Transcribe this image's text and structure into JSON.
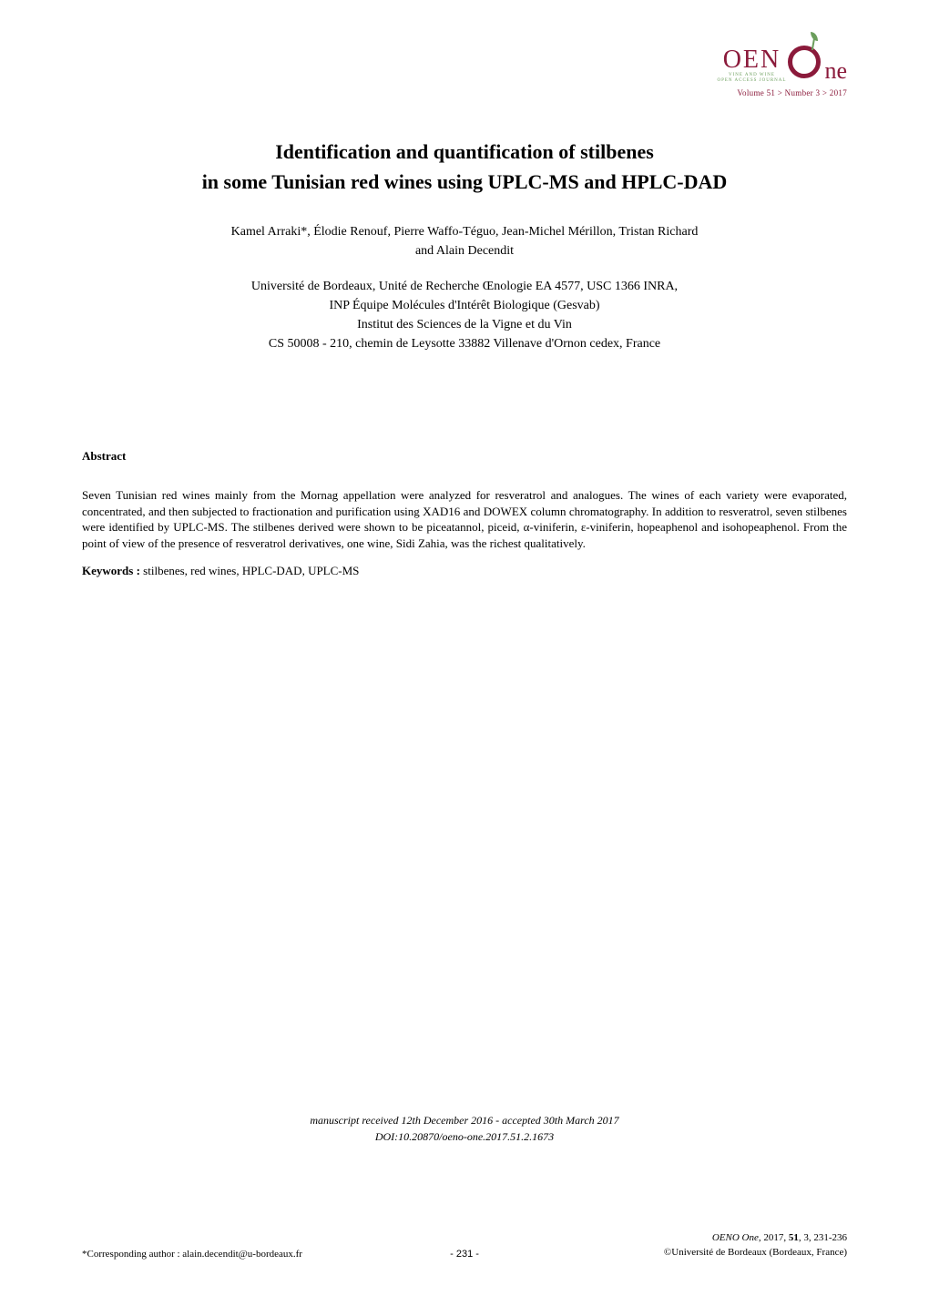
{
  "logo": {
    "brand_prefix": "OEN",
    "brand_suffix": "ne",
    "tagline1": "VINE AND WINE",
    "tagline2": "OPEN ACCESS JOURNAL",
    "volume_info": "Volume 51 > Number 3 > 2017",
    "brand_color": "#8b1a3b",
    "accent_color": "#6b9e5c"
  },
  "title": {
    "line1": "Identification and quantification of stilbenes",
    "line2": "in some Tunisian red wines using UPLC-MS and HPLC-DAD"
  },
  "authors": {
    "line1": "Kamel Arraki*, Élodie Renouf, Pierre Waffo-Téguo, Jean-Michel Mérillon, Tristan Richard",
    "line2": "and Alain Decendit"
  },
  "affiliation": {
    "line1": "Université de Bordeaux, Unité de Recherche Œnologie EA 4577, USC 1366 INRA,",
    "line2": "INP Équipe Molécules d'Intérêt Biologique (Gesvab)",
    "line3": "Institut des Sciences de la Vigne et du Vin",
    "line4": "CS 50008 - 210, chemin de Leysotte 33882 Villenave d'Ornon cedex, France"
  },
  "abstract": {
    "heading": "Abstract",
    "text": "Seven Tunisian red wines mainly from the Mornag appellation were analyzed for resveratrol and analogues. The wines of each variety were evaporated, concentrated, and then subjected to fractionation and purification using XAD16 and DOWEX column chromatography. In addition to resveratrol, seven stilbenes were identified by UPLC-MS. The stilbenes derived were shown to be piceatannol, piceid, α-viniferin, ε-viniferin, hopeaphenol and isohopeaphenol. From the point of view of the presence of resveratrol derivatives, one wine, Sidi Zahia, was the richest qualitatively."
  },
  "keywords": {
    "label": "Keywords :",
    "text": " stilbenes, red wines, HPLC-DAD, UPLC-MS"
  },
  "manuscript": {
    "line1": "manuscript received 12th December 2016 - accepted 30th March 2017",
    "line2": "DOI:10.20870/oeno-one.2017.51.2.1673"
  },
  "footer": {
    "corresponding": "*Corresponding author : alain.decendit@u-bordeaux.fr",
    "page_number": "- 231 -",
    "citation_journal": "OENO One",
    "citation_year": ", 2017, ",
    "citation_vol": "51",
    "citation_issue": ", 3, 231-236",
    "copyright": "©Université de Bordeaux (Bordeaux, France)"
  }
}
